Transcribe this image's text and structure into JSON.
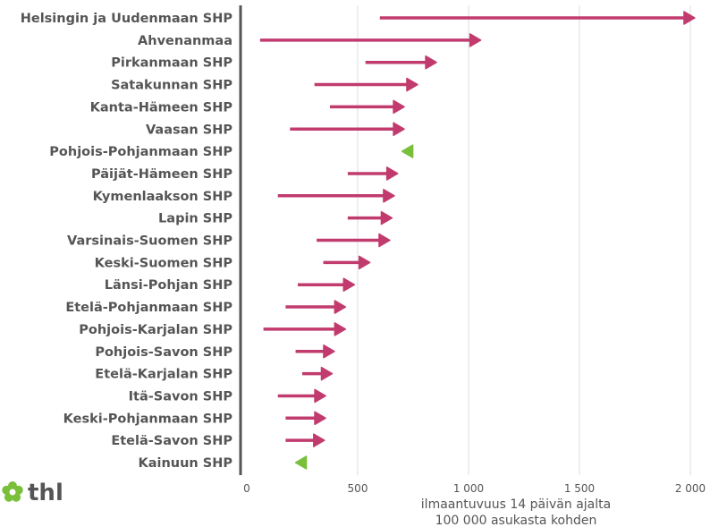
{
  "chart_data": {
    "type": "arrow-range",
    "title": "",
    "xlabel_lines": [
      "ilmaantuvuus 14 päivän ajalta",
      "100 000 asukasta kohden"
    ],
    "xlim": [
      0,
      2000
    ],
    "xticks": [
      0,
      500,
      1000,
      1500,
      2000
    ],
    "xtick_labels": [
      "0",
      "500",
      "1 000",
      "1 500",
      "2 000"
    ],
    "grid": true,
    "colors": {
      "increase": "#c13b6e",
      "decrease": "#7abf3a",
      "text": "#555555",
      "grid": "#dddddd",
      "axis": "#555555"
    },
    "categories": [
      "Helsingin ja Uudenmaan SHP",
      "Ahvenanmaa",
      "Pirkanmaan SHP",
      "Satakunnan SHP",
      "Kanta-Hämeen SHP",
      "Vaasan SHP",
      "Pohjois-Pohjanmaan SHP",
      "Päijät-Hämeen SHP",
      "Kymenlaakson SHP",
      "Lapin SHP",
      "Varsinais-Suomen SHP",
      "Keski-Suomen SHP",
      "Länsi-Pohjan SHP",
      "Etelä-Pohjanmaan SHP",
      "Pohjois-Karjalan SHP",
      "Pohjois-Savon SHP",
      "Etelä-Karjalan SHP",
      "Itä-Savon SHP",
      "Keski-Pohjanmaan SHP",
      "Etelä-Savon SHP",
      "Kainuun SHP"
    ],
    "start": [
      600,
      60,
      535,
      305,
      375,
      195,
      740,
      455,
      140,
      455,
      315,
      345,
      230,
      175,
      75,
      220,
      250,
      140,
      175,
      175,
      265
    ],
    "end": [
      2020,
      1055,
      855,
      770,
      710,
      710,
      700,
      680,
      665,
      655,
      645,
      555,
      485,
      445,
      445,
      395,
      385,
      355,
      355,
      350,
      220
    ]
  },
  "logo": {
    "text": "thl"
  }
}
